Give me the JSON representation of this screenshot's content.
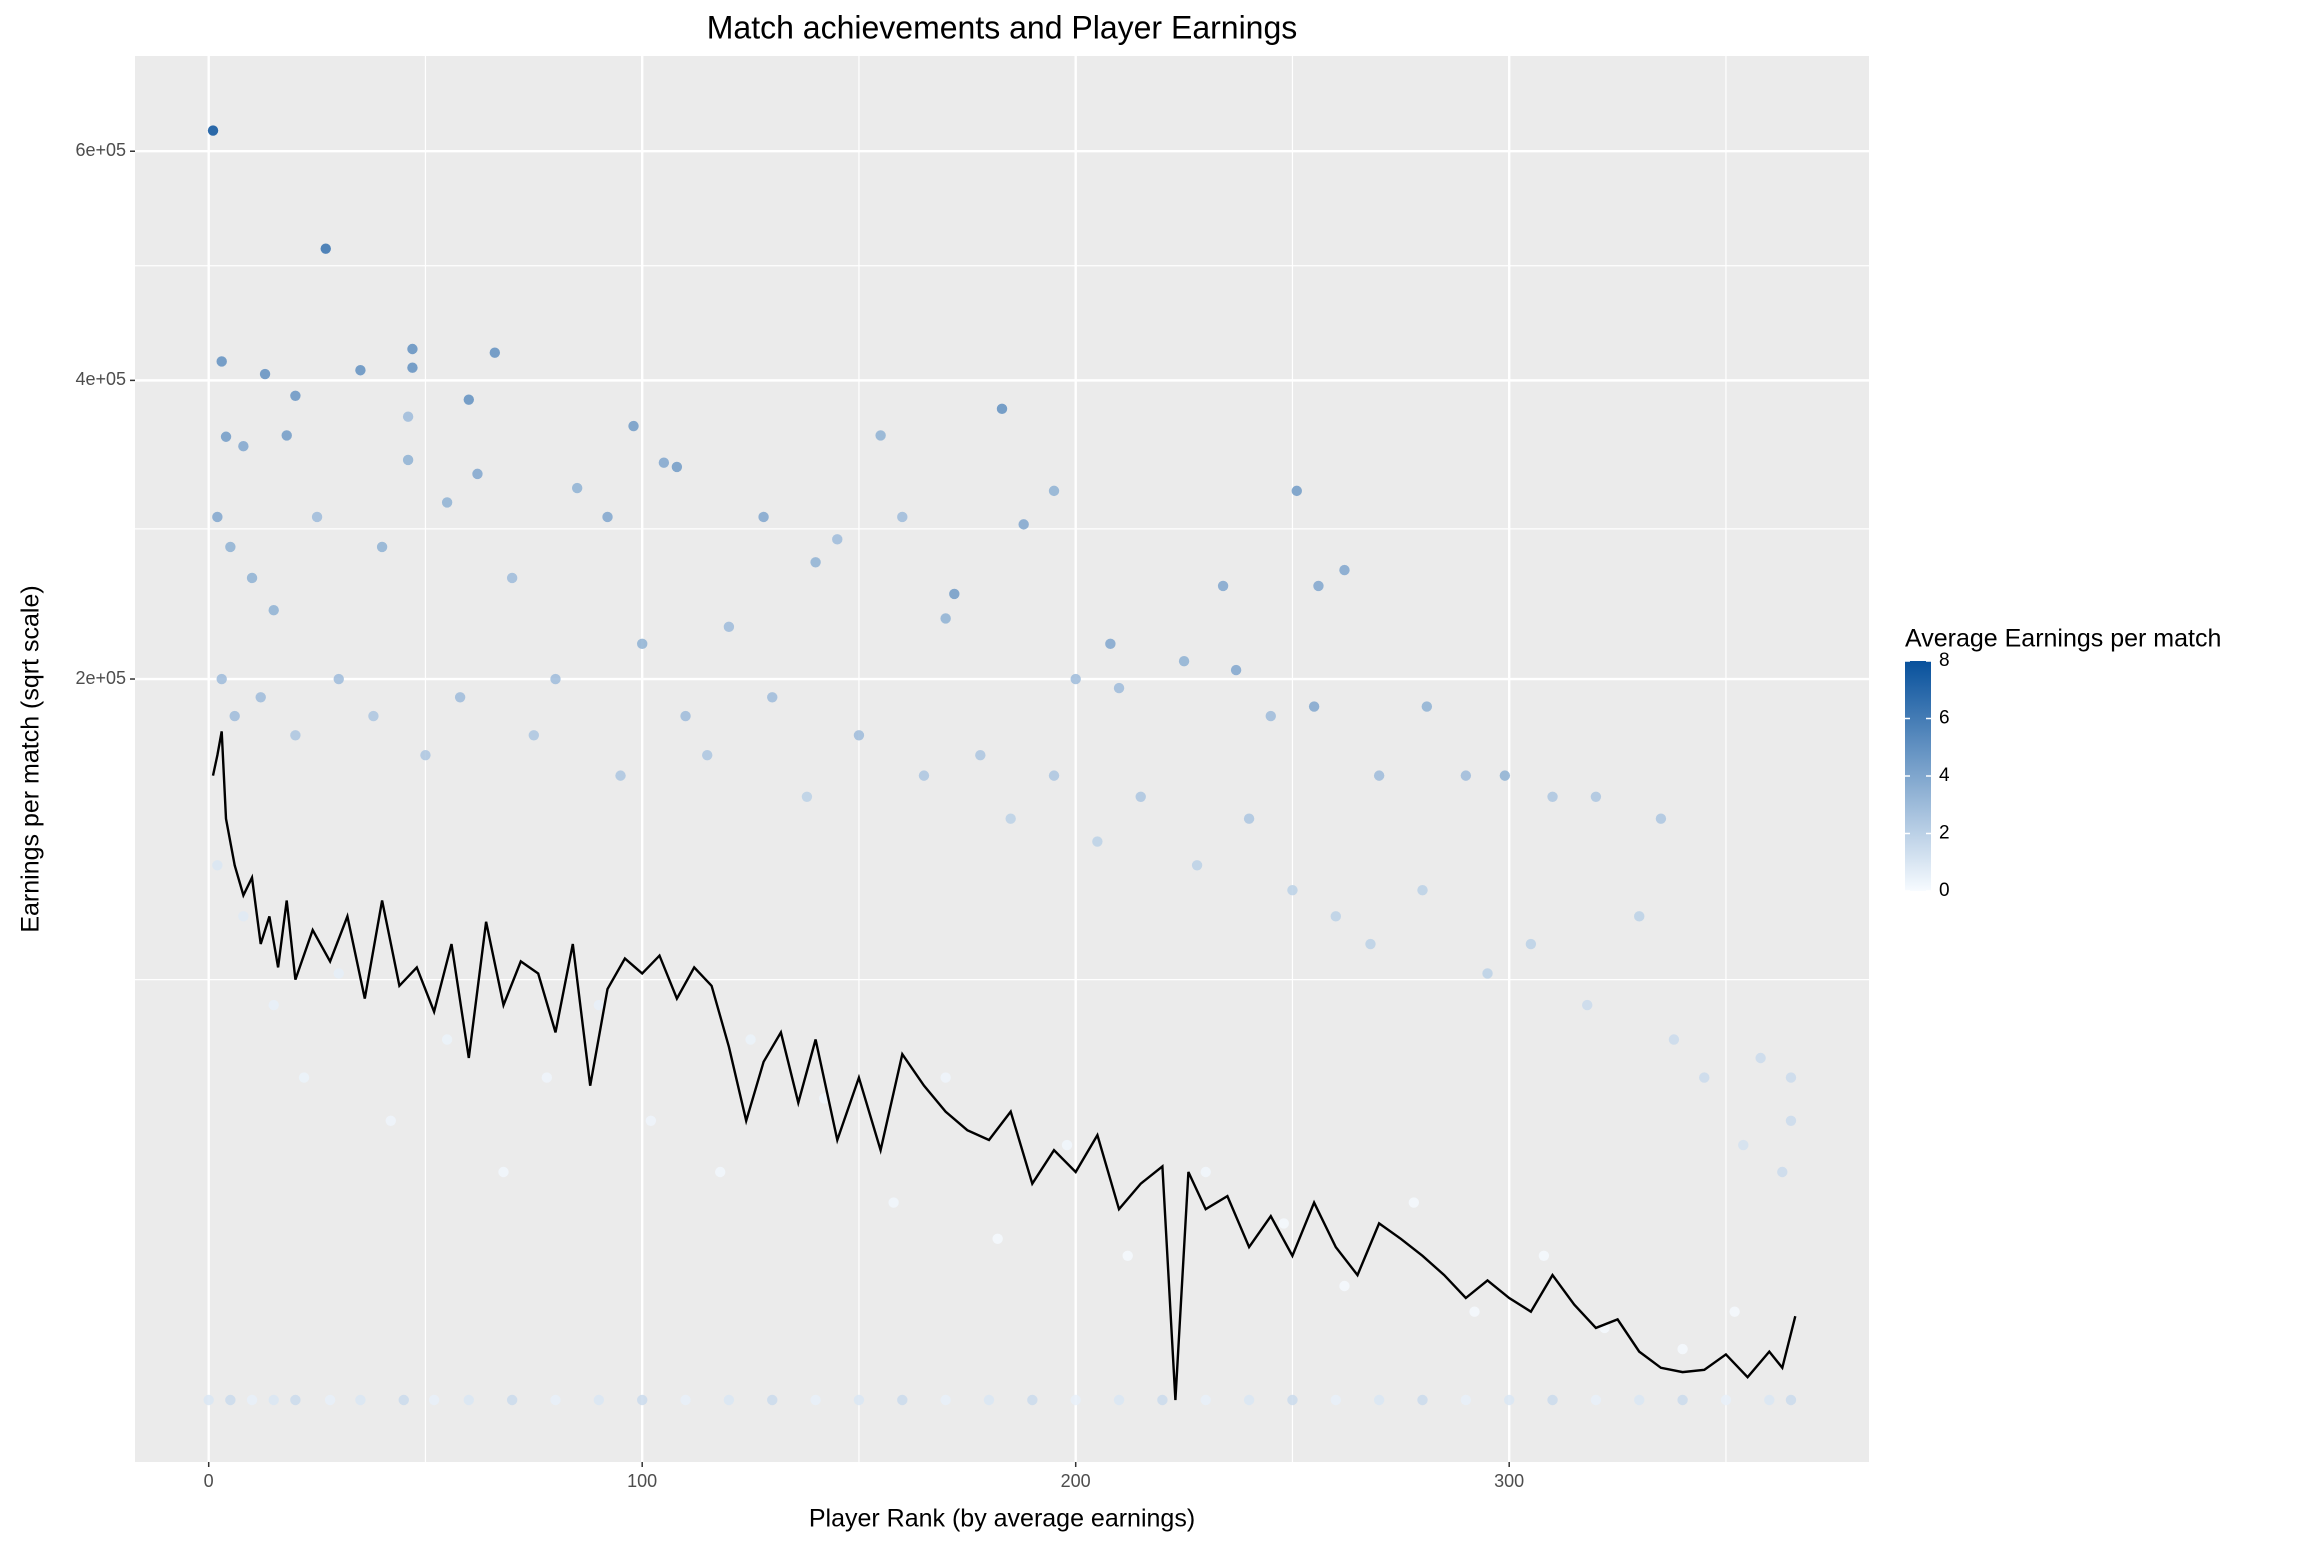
{
  "chart_data": {
    "type": "scatter",
    "title": "Match achievements and Player Earnings",
    "x_label": "Player Rank (by average earnings)",
    "y_label": "Earnings per match (sqrt scale)",
    "y_scale": "sqrt",
    "xlim": [
      -17,
      383
    ],
    "ylim": [
      0,
      695000
    ],
    "xticks": [
      0,
      100,
      200,
      300
    ],
    "xminor": [
      50,
      150,
      250,
      350
    ],
    "yticks": [
      {
        "value": 200000,
        "label": "2e+05"
      },
      {
        "value": 400000,
        "label": "4e+05"
      },
      {
        "value": 600000,
        "label": "6e+05"
      }
    ],
    "yminor": [
      68000,
      292000,
      495000
    ],
    "grid": true,
    "colorbar": {
      "title": "Average Earnings per match",
      "lim": [
        0,
        8
      ],
      "ticks": [
        0,
        2,
        4,
        6,
        8
      ],
      "low": "#f7fbff",
      "high": "#08519c"
    },
    "points": {
      "x": [
        1,
        27,
        3,
        35,
        47,
        47,
        66,
        13,
        20,
        60,
        183,
        46,
        98,
        4,
        18,
        155,
        8,
        46,
        105,
        108,
        251,
        195,
        128,
        188,
        262,
        256,
        234,
        172,
        208,
        237,
        255,
        281,
        299,
        2,
        5,
        10,
        15,
        25,
        40,
        55,
        62,
        70,
        85,
        92,
        100,
        120,
        140,
        145,
        160,
        170,
        200,
        210,
        225,
        245,
        270,
        290,
        310,
        320,
        335,
        3,
        6,
        12,
        20,
        30,
        38,
        50,
        58,
        75,
        80,
        95,
        110,
        115,
        130,
        138,
        150,
        165,
        178,
        185,
        195,
        205,
        215,
        228,
        240,
        250,
        260,
        268,
        280,
        295,
        305,
        318,
        330,
        338,
        345,
        358,
        365,
        365,
        363,
        354,
        2,
        8,
        15,
        22,
        30,
        42,
        55,
        68,
        78,
        90,
        102,
        118,
        125,
        142,
        158,
        170,
        182,
        198,
        212,
        230,
        248,
        262,
        278,
        292,
        308,
        322,
        340,
        352,
        0,
        5,
        10,
        15,
        20,
        28,
        35,
        45,
        52,
        60,
        70,
        80,
        90,
        100,
        110,
        120,
        130,
        140,
        150,
        160,
        170,
        180,
        190,
        200,
        210,
        220,
        230,
        240,
        250,
        260,
        270,
        280,
        290,
        300,
        310,
        320,
        330,
        340,
        350,
        360,
        365
      ],
      "values": [
        620000,
        510000,
        415000,
        408000,
        425000,
        410000,
        422000,
        405000,
        388000,
        385000,
        378000,
        372000,
        365000,
        357000,
        358000,
        358000,
        350000,
        340000,
        338000,
        335000,
        318000,
        318000,
        300000,
        295000,
        265000,
        255000,
        255000,
        250000,
        220000,
        205000,
        185000,
        185000,
        150000,
        300000,
        280000,
        260000,
        240000,
        300000,
        280000,
        310000,
        330000,
        260000,
        320000,
        300000,
        220000,
        230000,
        270000,
        285000,
        300000,
        235000,
        200000,
        195000,
        210000,
        180000,
        150000,
        150000,
        140000,
        140000,
        130000,
        200000,
        180000,
        190000,
        170000,
        200000,
        180000,
        160000,
        190000,
        170000,
        200000,
        150000,
        180000,
        160000,
        190000,
        140000,
        170000,
        150000,
        160000,
        130000,
        150000,
        120000,
        140000,
        110000,
        130000,
        100000,
        90000,
        80000,
        100000,
        70000,
        80000,
        60000,
        90000,
        50000,
        40000,
        45000,
        40000,
        30000,
        20000,
        25000,
        110000,
        90000,
        60000,
        40000,
        70000,
        30000,
        50000,
        20000,
        40000,
        60000,
        30000,
        20000,
        50000,
        35000,
        15000,
        40000,
        10000,
        25000,
        8000,
        20000,
        12000,
        5000,
        15000,
        3000,
        8000,
        2000,
        1000,
        3000,
        0,
        0,
        0,
        0,
        0,
        0,
        0,
        0,
        0,
        0,
        0,
        0,
        0,
        0,
        0,
        0,
        0,
        0,
        0,
        0,
        0,
        0,
        0,
        0,
        0,
        0,
        0,
        0,
        0,
        0,
        0,
        0,
        0,
        0,
        0,
        0,
        0,
        0,
        0,
        0,
        0
      ],
      "color_values": [
        8,
        6.5,
        5,
        5,
        5,
        5,
        5,
        5,
        4.8,
        5,
        5,
        3,
        4.5,
        4.5,
        4.5,
        3.5,
        4,
        3.5,
        4,
        4.5,
        4.5,
        3.5,
        4,
        4,
        4,
        4,
        4,
        4.5,
        4,
        4,
        4,
        3.5,
        3.5,
        4,
        3.5,
        3.5,
        3.5,
        3,
        3.5,
        3.5,
        4,
        3,
        3.5,
        4,
        3.5,
        3,
        3.5,
        3,
        3,
        3.5,
        3,
        3,
        3.5,
        3,
        3,
        3,
        2.5,
        2.5,
        2.5,
        3,
        3,
        3,
        2.5,
        3,
        2.5,
        2.5,
        3,
        2.5,
        3,
        2.5,
        3,
        2.5,
        3,
        2,
        3,
        2.5,
        2.5,
        2,
        2.5,
        2,
        2.5,
        2,
        2.5,
        2,
        2,
        2,
        2,
        2,
        2,
        1.5,
        2,
        1.5,
        1.5,
        1.5,
        1.5,
        1.5,
        1.5,
        1.2,
        1,
        0.8,
        0.5,
        0.4,
        0.6,
        0.3,
        0.4,
        0.2,
        0.3,
        0.5,
        0.3,
        0.2,
        0.4,
        0.3,
        0.2,
        0.3,
        0.1,
        0.2,
        0.1,
        0.2,
        0.1,
        0.1,
        0.1,
        0.1,
        0.1,
        0.1,
        0.1,
        0.1,
        1,
        1.5,
        0.5,
        1,
        1.5,
        0.5,
        1,
        1.5,
        0.5,
        1,
        1.5,
        0.5,
        1,
        1.5,
        0.5,
        1,
        1.5,
        0.5,
        1,
        1.5,
        0.5,
        1,
        1.5,
        0.5,
        1,
        1.5,
        0.5,
        1,
        1.5,
        0.5,
        1,
        1.5,
        0.5,
        1,
        1.5,
        0.5,
        1,
        1.5,
        0.5,
        1,
        1.5
      ]
    },
    "line": {
      "color": "#000000",
      "x": [
        1,
        2,
        3,
        4,
        6,
        8,
        10,
        12,
        14,
        16,
        18,
        20,
        24,
        28,
        32,
        36,
        40,
        44,
        48,
        52,
        56,
        60,
        64,
        68,
        72,
        76,
        80,
        84,
        88,
        92,
        96,
        100,
        104,
        108,
        112,
        116,
        120,
        124,
        128,
        132,
        136,
        140,
        145,
        150,
        155,
        160,
        165,
        170,
        175,
        180,
        185,
        190,
        195,
        200,
        205,
        210,
        215,
        220,
        223,
        226,
        230,
        235,
        240,
        245,
        250,
        255,
        260,
        265,
        270,
        275,
        280,
        285,
        290,
        295,
        300,
        305,
        310,
        315,
        320,
        325,
        330,
        335,
        340,
        345,
        350,
        355,
        360,
        363,
        366
      ],
      "values": [
        150000,
        160000,
        172000,
        130000,
        110000,
        98000,
        105000,
        80000,
        90000,
        72000,
        96000,
        68000,
        85000,
        74000,
        90000,
        62000,
        96000,
        66000,
        72000,
        58000,
        80000,
        45000,
        88000,
        60000,
        74000,
        70000,
        52000,
        80000,
        38000,
        65000,
        75000,
        70000,
        76000,
        62000,
        72000,
        66000,
        48000,
        30000,
        44000,
        52000,
        34000,
        50000,
        26000,
        40000,
        24000,
        46000,
        38000,
        32000,
        28000,
        26000,
        32000,
        18000,
        24000,
        20000,
        27000,
        14000,
        18000,
        21000,
        0,
        20000,
        14000,
        16000,
        9000,
        13000,
        8000,
        15000,
        9000,
        6000,
        12000,
        10000,
        8000,
        6000,
        4000,
        5500,
        4000,
        3000,
        6000,
        3500,
        2000,
        2500,
        900,
        400,
        300,
        350,
        800,
        200,
        900,
        400,
        2700
      ]
    }
  }
}
